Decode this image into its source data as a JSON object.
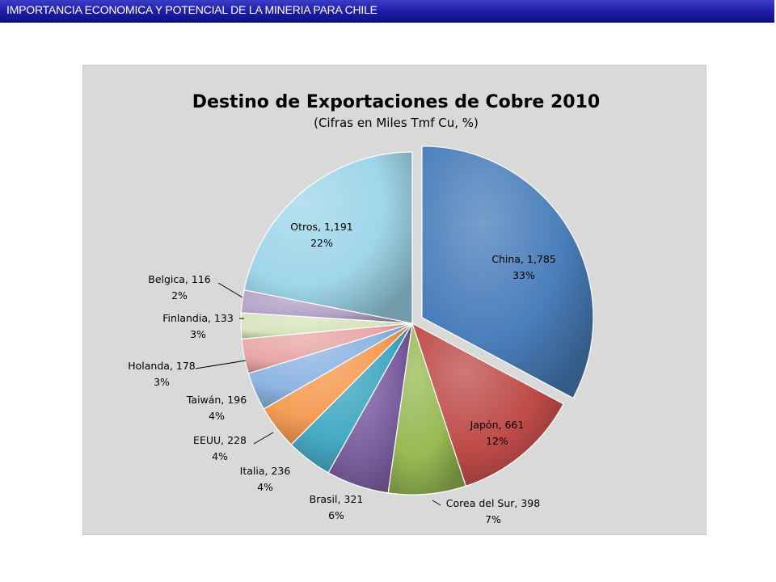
{
  "header": {
    "title": "IMPORTANCIA  ECONOMICA Y POTENCIAL DE LA MINERIA PARA CHILE"
  },
  "chart_data": {
    "type": "pie",
    "title": "Destino de Exportaciones de Cobre 2010",
    "subtitle": "(Cifras en Miles Tmf Cu, %)",
    "slices": [
      {
        "name": "China",
        "value": 1785,
        "value_label": "1,785",
        "percent": "33%",
        "color": "#4a7ebb"
      },
      {
        "name": "Japón",
        "value": 661,
        "value_label": "661",
        "percent": "12%",
        "color": "#be4b48"
      },
      {
        "name": "Corea del Sur",
        "value": 398,
        "value_label": "398",
        "percent": "7%",
        "color": "#98b954"
      },
      {
        "name": "Brasil",
        "value": 321,
        "value_label": "321",
        "percent": "6%",
        "color": "#7d60a0"
      },
      {
        "name": "Italia",
        "value": 236,
        "value_label": "236",
        "percent": "4%",
        "color": "#46aac4"
      },
      {
        "name": "EEUU",
        "value": 228,
        "value_label": "228",
        "percent": "4%",
        "color": "#f59d56"
      },
      {
        "name": "Taiwán",
        "value": 196,
        "value_label": "196",
        "percent": "4%",
        "color": "#8eb4e3"
      },
      {
        "name": "Holanda",
        "value": 178,
        "value_label": "178",
        "percent": "3%",
        "color": "#e8a7a6"
      },
      {
        "name": "Finlandia",
        "value": 133,
        "value_label": "133",
        "percent": "3%",
        "color": "#d7e4bd"
      },
      {
        "name": "Belgica",
        "value": 116,
        "value_label": "116",
        "percent": "2%",
        "color": "#b3a2c7"
      },
      {
        "name": "Otros",
        "value": 1191,
        "value_label": "1,191",
        "percent": "22%",
        "color": "#9fd6e9"
      }
    ]
  }
}
